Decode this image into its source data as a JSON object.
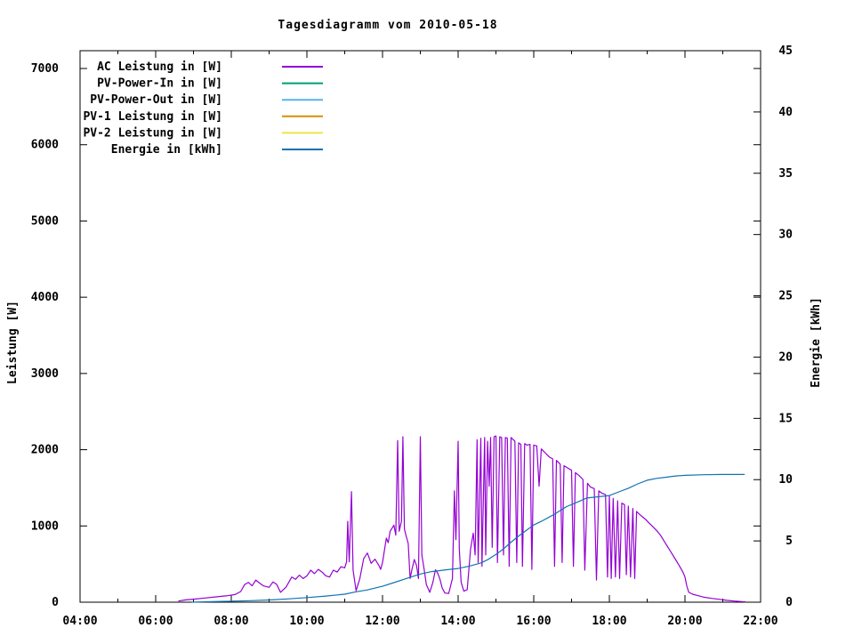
{
  "chart": {
    "title": "Tagesdiagramm vom 2010-05-18",
    "y1": {
      "label": "Leistung [W]"
    },
    "y2": {
      "label": "Energie [kWh]"
    }
  },
  "legend": {
    "entries": [
      {
        "label": "AC Leistung in [W]",
        "color": "#9400d3"
      },
      {
        "label": "PV-Power-In in [W]",
        "color": "#009e73"
      },
      {
        "label": "PV-Power-Out in [W]",
        "color": "#56b4e9"
      },
      {
        "label": "PV-1 Leistung in [W]",
        "color": "#d89000"
      },
      {
        "label": "PV-2 Leistung in [W]",
        "color": "#f0e442"
      },
      {
        "label": "Energie in [kWh]",
        "color": "#1172b2"
      }
    ]
  },
  "chart_data": {
    "type": "line",
    "title": "Tagesdiagramm vom 2010-05-18",
    "xlabel": "",
    "ylabel": "Leistung [W]",
    "y2label": "Energie [kWh]",
    "x_range_hours": [
      4,
      22
    ],
    "x_major_step_hours": 2,
    "x_minor_step_hours": 1,
    "y1_range": [
      0,
      7250
    ],
    "y1_tick_step": 1000,
    "y2_range": [
      0,
      45
    ],
    "y2_tick_step": 5,
    "grid": false,
    "legend_position": "top-left-inside",
    "x_ticks": [
      {
        "h": 4,
        "label": "04:00"
      },
      {
        "h": 6,
        "label": "06:00"
      },
      {
        "h": 8,
        "label": "08:00"
      },
      {
        "h": 10,
        "label": "10:00"
      },
      {
        "h": 12,
        "label": "12:00"
      },
      {
        "h": 14,
        "label": "14:00"
      },
      {
        "h": 16,
        "label": "16:00"
      },
      {
        "h": 18,
        "label": "18:00"
      },
      {
        "h": 20,
        "label": "20:00"
      },
      {
        "h": 22,
        "label": "22:00"
      }
    ],
    "y1_ticks": [
      {
        "v": 0,
        "label": "0"
      },
      {
        "v": 1000,
        "label": "1000"
      },
      {
        "v": 2000,
        "label": "2000"
      },
      {
        "v": 3000,
        "label": "3000"
      },
      {
        "v": 4000,
        "label": "4000"
      },
      {
        "v": 5000,
        "label": "5000"
      },
      {
        "v": 6000,
        "label": "6000"
      },
      {
        "v": 7000,
        "label": "7000"
      }
    ],
    "y2_ticks": [
      {
        "v": 0,
        "label": "0"
      },
      {
        "v": 5,
        "label": "5"
      },
      {
        "v": 10,
        "label": "10"
      },
      {
        "v": 15,
        "label": "15"
      },
      {
        "v": 20,
        "label": "20"
      },
      {
        "v": 25,
        "label": "25"
      },
      {
        "v": 30,
        "label": "30"
      },
      {
        "v": 35,
        "label": "35"
      },
      {
        "v": 40,
        "label": "40"
      },
      {
        "v": 45,
        "label": "45"
      }
    ],
    "series": [
      {
        "name": "AC Leistung in [W]",
        "color": "#9400d3",
        "axis": "y1",
        "points": [
          [
            6.6,
            15
          ],
          [
            6.8,
            30
          ],
          [
            7.0,
            40
          ],
          [
            7.3,
            55
          ],
          [
            7.6,
            70
          ],
          [
            7.9,
            85
          ],
          [
            8.1,
            100
          ],
          [
            8.25,
            140
          ],
          [
            8.35,
            230
          ],
          [
            8.45,
            260
          ],
          [
            8.55,
            215
          ],
          [
            8.65,
            290
          ],
          [
            8.75,
            250
          ],
          [
            8.85,
            215
          ],
          [
            9.0,
            195
          ],
          [
            9.1,
            265
          ],
          [
            9.2,
            235
          ],
          [
            9.3,
            130
          ],
          [
            9.45,
            200
          ],
          [
            9.6,
            330
          ],
          [
            9.7,
            300
          ],
          [
            9.8,
            355
          ],
          [
            9.9,
            310
          ],
          [
            10.0,
            345
          ],
          [
            10.1,
            420
          ],
          [
            10.2,
            375
          ],
          [
            10.3,
            430
          ],
          [
            10.4,
            395
          ],
          [
            10.5,
            345
          ],
          [
            10.6,
            330
          ],
          [
            10.7,
            420
          ],
          [
            10.8,
            395
          ],
          [
            10.9,
            465
          ],
          [
            11.0,
            450
          ],
          [
            11.05,
            530
          ],
          [
            11.08,
            1060
          ],
          [
            11.12,
            530
          ],
          [
            11.18,
            1450
          ],
          [
            11.22,
            420
          ],
          [
            11.3,
            150
          ],
          [
            11.4,
            310
          ],
          [
            11.5,
            570
          ],
          [
            11.6,
            645
          ],
          [
            11.7,
            510
          ],
          [
            11.8,
            565
          ],
          [
            11.9,
            485
          ],
          [
            11.95,
            430
          ],
          [
            12.0,
            520
          ],
          [
            12.1,
            840
          ],
          [
            12.15,
            780
          ],
          [
            12.2,
            930
          ],
          [
            12.3,
            1010
          ],
          [
            12.35,
            880
          ],
          [
            12.4,
            2120
          ],
          [
            12.44,
            930
          ],
          [
            12.5,
            1060
          ],
          [
            12.54,
            2170
          ],
          [
            12.58,
            960
          ],
          [
            12.62,
            880
          ],
          [
            12.68,
            770
          ],
          [
            12.73,
            310
          ],
          [
            12.78,
            430
          ],
          [
            12.84,
            560
          ],
          [
            12.9,
            480
          ],
          [
            12.95,
            310
          ],
          [
            13.0,
            2170
          ],
          [
            13.04,
            620
          ],
          [
            13.1,
            430
          ],
          [
            13.16,
            230
          ],
          [
            13.25,
            130
          ],
          [
            13.33,
            255
          ],
          [
            13.4,
            425
          ],
          [
            13.46,
            380
          ],
          [
            13.52,
            300
          ],
          [
            13.58,
            185
          ],
          [
            13.65,
            120
          ],
          [
            13.75,
            115
          ],
          [
            13.85,
            310
          ],
          [
            13.9,
            1460
          ],
          [
            13.94,
            820
          ],
          [
            14.0,
            2110
          ],
          [
            14.03,
            700
          ],
          [
            14.08,
            260
          ],
          [
            14.15,
            145
          ],
          [
            14.24,
            165
          ],
          [
            14.33,
            700
          ],
          [
            14.4,
            905
          ],
          [
            14.45,
            620
          ],
          [
            14.5,
            2130
          ],
          [
            14.53,
            520
          ],
          [
            14.6,
            2150
          ],
          [
            14.63,
            470
          ],
          [
            14.7,
            2160
          ],
          [
            14.73,
            620
          ],
          [
            14.78,
            2110
          ],
          [
            14.82,
            1520
          ],
          [
            14.86,
            2160
          ],
          [
            14.9,
            720
          ],
          [
            14.95,
            2170
          ],
          [
            15.0,
            2180
          ],
          [
            15.04,
            520
          ],
          [
            15.1,
            2170
          ],
          [
            15.15,
            2160
          ],
          [
            15.2,
            620
          ],
          [
            15.25,
            2160
          ],
          [
            15.3,
            2150
          ],
          [
            15.35,
            470
          ],
          [
            15.4,
            2160
          ],
          [
            15.46,
            2130
          ],
          [
            15.5,
            2110
          ],
          [
            15.55,
            520
          ],
          [
            15.6,
            2090
          ],
          [
            15.66,
            2070
          ],
          [
            15.7,
            470
          ],
          [
            15.76,
            2080
          ],
          [
            15.82,
            2060
          ],
          [
            15.9,
            2070
          ],
          [
            15.95,
            430
          ],
          [
            16.0,
            2060
          ],
          [
            16.08,
            2050
          ],
          [
            16.14,
            1520
          ],
          [
            16.2,
            2010
          ],
          [
            16.3,
            1960
          ],
          [
            16.36,
            1930
          ],
          [
            16.42,
            1900
          ],
          [
            16.5,
            1880
          ],
          [
            16.55,
            470
          ],
          [
            16.6,
            1860
          ],
          [
            16.7,
            1810
          ],
          [
            16.75,
            520
          ],
          [
            16.8,
            1790
          ],
          [
            16.9,
            1760
          ],
          [
            17.0,
            1730
          ],
          [
            17.05,
            470
          ],
          [
            17.1,
            1700
          ],
          [
            17.2,
            1660
          ],
          [
            17.3,
            1610
          ],
          [
            17.35,
            420
          ],
          [
            17.42,
            1560
          ],
          [
            17.5,
            1510
          ],
          [
            17.6,
            1490
          ],
          [
            17.66,
            290
          ],
          [
            17.72,
            1460
          ],
          [
            17.8,
            1430
          ],
          [
            17.9,
            1410
          ],
          [
            17.95,
            330
          ],
          [
            18.0,
            1390
          ],
          [
            18.05,
            310
          ],
          [
            18.1,
            1360
          ],
          [
            18.16,
            330
          ],
          [
            18.22,
            1330
          ],
          [
            18.27,
            310
          ],
          [
            18.33,
            1300
          ],
          [
            18.4,
            1280
          ],
          [
            18.45,
            360
          ],
          [
            18.5,
            1260
          ],
          [
            18.56,
            330
          ],
          [
            18.62,
            1230
          ],
          [
            18.67,
            310
          ],
          [
            18.72,
            1190
          ],
          [
            18.78,
            1160
          ],
          [
            18.85,
            1130
          ],
          [
            18.95,
            1090
          ],
          [
            19.05,
            1040
          ],
          [
            19.15,
            990
          ],
          [
            19.25,
            940
          ],
          [
            19.35,
            880
          ],
          [
            19.45,
            800
          ],
          [
            19.55,
            720
          ],
          [
            19.65,
            640
          ],
          [
            19.75,
            560
          ],
          [
            19.85,
            480
          ],
          [
            19.95,
            390
          ],
          [
            20.0,
            330
          ],
          [
            20.05,
            210
          ],
          [
            20.1,
            130
          ],
          [
            20.2,
            105
          ],
          [
            20.35,
            85
          ],
          [
            20.5,
            65
          ],
          [
            20.7,
            50
          ],
          [
            20.9,
            38
          ],
          [
            21.1,
            25
          ],
          [
            21.3,
            15
          ],
          [
            21.5,
            8
          ],
          [
            21.6,
            5
          ]
        ]
      },
      {
        "name": "PV-Power-In in [W]",
        "color": "#009e73",
        "axis": "y1",
        "points": []
      },
      {
        "name": "PV-Power-Out in [W]",
        "color": "#56b4e9",
        "axis": "y1",
        "points": []
      },
      {
        "name": "PV-1 Leistung in [W]",
        "color": "#d89000",
        "axis": "y1",
        "points": []
      },
      {
        "name": "PV-2 Leistung in [W]",
        "color": "#f0e442",
        "axis": "y1",
        "points": []
      },
      {
        "name": "Energie in [kWh]",
        "color": "#1172b2",
        "axis": "y2",
        "points": [
          [
            6.95,
            0
          ],
          [
            7.5,
            0.04
          ],
          [
            8.0,
            0.08
          ],
          [
            8.5,
            0.12
          ],
          [
            9.0,
            0.18
          ],
          [
            9.5,
            0.27
          ],
          [
            10.0,
            0.38
          ],
          [
            10.5,
            0.5
          ],
          [
            11.0,
            0.65
          ],
          [
            11.3,
            0.85
          ],
          [
            11.6,
            1.0
          ],
          [
            12.0,
            1.3
          ],
          [
            12.3,
            1.6
          ],
          [
            12.6,
            1.9
          ],
          [
            13.0,
            2.3
          ],
          [
            13.3,
            2.5
          ],
          [
            13.7,
            2.65
          ],
          [
            14.0,
            2.75
          ],
          [
            14.3,
            2.95
          ],
          [
            14.6,
            3.2
          ],
          [
            14.8,
            3.5
          ],
          [
            15.0,
            3.9
          ],
          [
            15.2,
            4.35
          ],
          [
            15.4,
            4.9
          ],
          [
            15.6,
            5.4
          ],
          [
            15.8,
            5.85
          ],
          [
            16.0,
            6.3
          ],
          [
            16.2,
            6.6
          ],
          [
            16.5,
            7.1
          ],
          [
            16.87,
            7.8
          ],
          [
            17.1,
            8.1
          ],
          [
            17.4,
            8.5
          ],
          [
            17.7,
            8.6
          ],
          [
            18.0,
            8.7
          ],
          [
            18.25,
            9.0
          ],
          [
            18.5,
            9.3
          ],
          [
            18.75,
            9.65
          ],
          [
            19.0,
            9.95
          ],
          [
            19.25,
            10.1
          ],
          [
            19.5,
            10.2
          ],
          [
            19.75,
            10.3
          ],
          [
            20.0,
            10.35
          ],
          [
            20.5,
            10.4
          ],
          [
            21.0,
            10.42
          ],
          [
            21.58,
            10.42
          ]
        ]
      }
    ]
  }
}
